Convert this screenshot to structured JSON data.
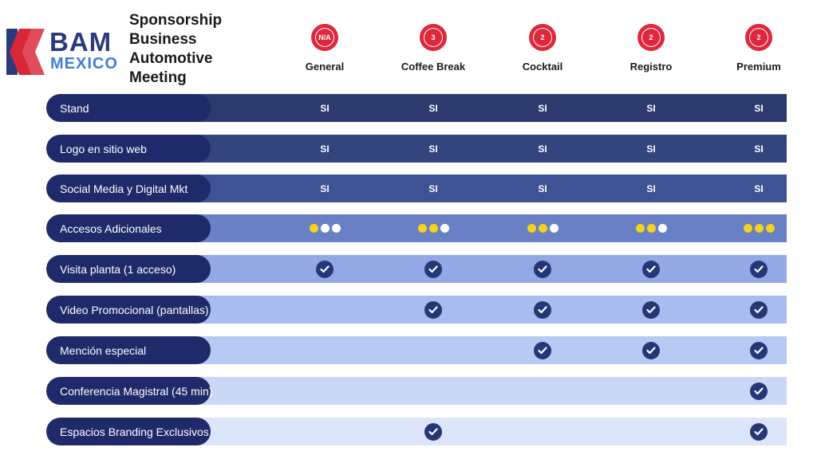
{
  "logo": {
    "line1": "BAM",
    "line2": "MEXICO"
  },
  "title": "Sponsorship Business Automotive Meeting",
  "plans": [
    {
      "name": "General",
      "badge": "N/A"
    },
    {
      "name": "Coffee Break",
      "badge": "3"
    },
    {
      "name": "Cocktail",
      "badge": "2"
    },
    {
      "name": "Registro",
      "badge": "2"
    },
    {
      "name": "Premium",
      "badge": "2"
    }
  ],
  "colors": {
    "accent_red": "#e0283c",
    "navy": "#1f2a6b",
    "check": "#263777",
    "dot_yellow": "#f5d31c",
    "dot_white": "#ffffff"
  },
  "rows": [
    {
      "label": "Stand",
      "band": "#2c3a6e",
      "type": "text",
      "values": [
        "SI",
        "SI",
        "SI",
        "SI",
        "SI"
      ]
    },
    {
      "label": "Logo en sitio web",
      "band": "#33447f",
      "type": "text",
      "values": [
        "SI",
        "SI",
        "SI",
        "SI",
        "SI"
      ]
    },
    {
      "label": "Social Media y Digital Mkt",
      "band": "#3e5294",
      "type": "text",
      "values": [
        "SI",
        "SI",
        "SI",
        "SI",
        "SI"
      ]
    },
    {
      "label": "Accesos Adicionales",
      "band": "#6a80c4",
      "type": "dots",
      "values": [
        [
          1,
          0,
          0
        ],
        [
          2,
          0,
          0
        ],
        [
          2,
          0,
          0
        ],
        [
          2,
          0,
          0
        ],
        [
          3,
          0,
          0
        ]
      ]
    },
    {
      "label": "Visita planta (1 acceso)",
      "band": "#93a8e4",
      "type": "check",
      "values": [
        true,
        true,
        true,
        true,
        true
      ]
    },
    {
      "label": "Video Promocional (pantallas)",
      "band": "#a9bcf0",
      "type": "check",
      "values": [
        false,
        true,
        true,
        true,
        true
      ]
    },
    {
      "label": "Mención especial",
      "band": "#b8c9f4",
      "type": "check",
      "values": [
        false,
        false,
        true,
        true,
        true
      ]
    },
    {
      "label": "Conferencia Magistral (45 min)",
      "band": "#cbd7f7",
      "type": "check",
      "values": [
        false,
        false,
        false,
        false,
        true
      ]
    },
    {
      "label": "Espacios Branding Exclusivos",
      "band": "#dde5fa",
      "type": "check",
      "values": [
        false,
        true,
        false,
        false,
        true
      ]
    }
  ]
}
